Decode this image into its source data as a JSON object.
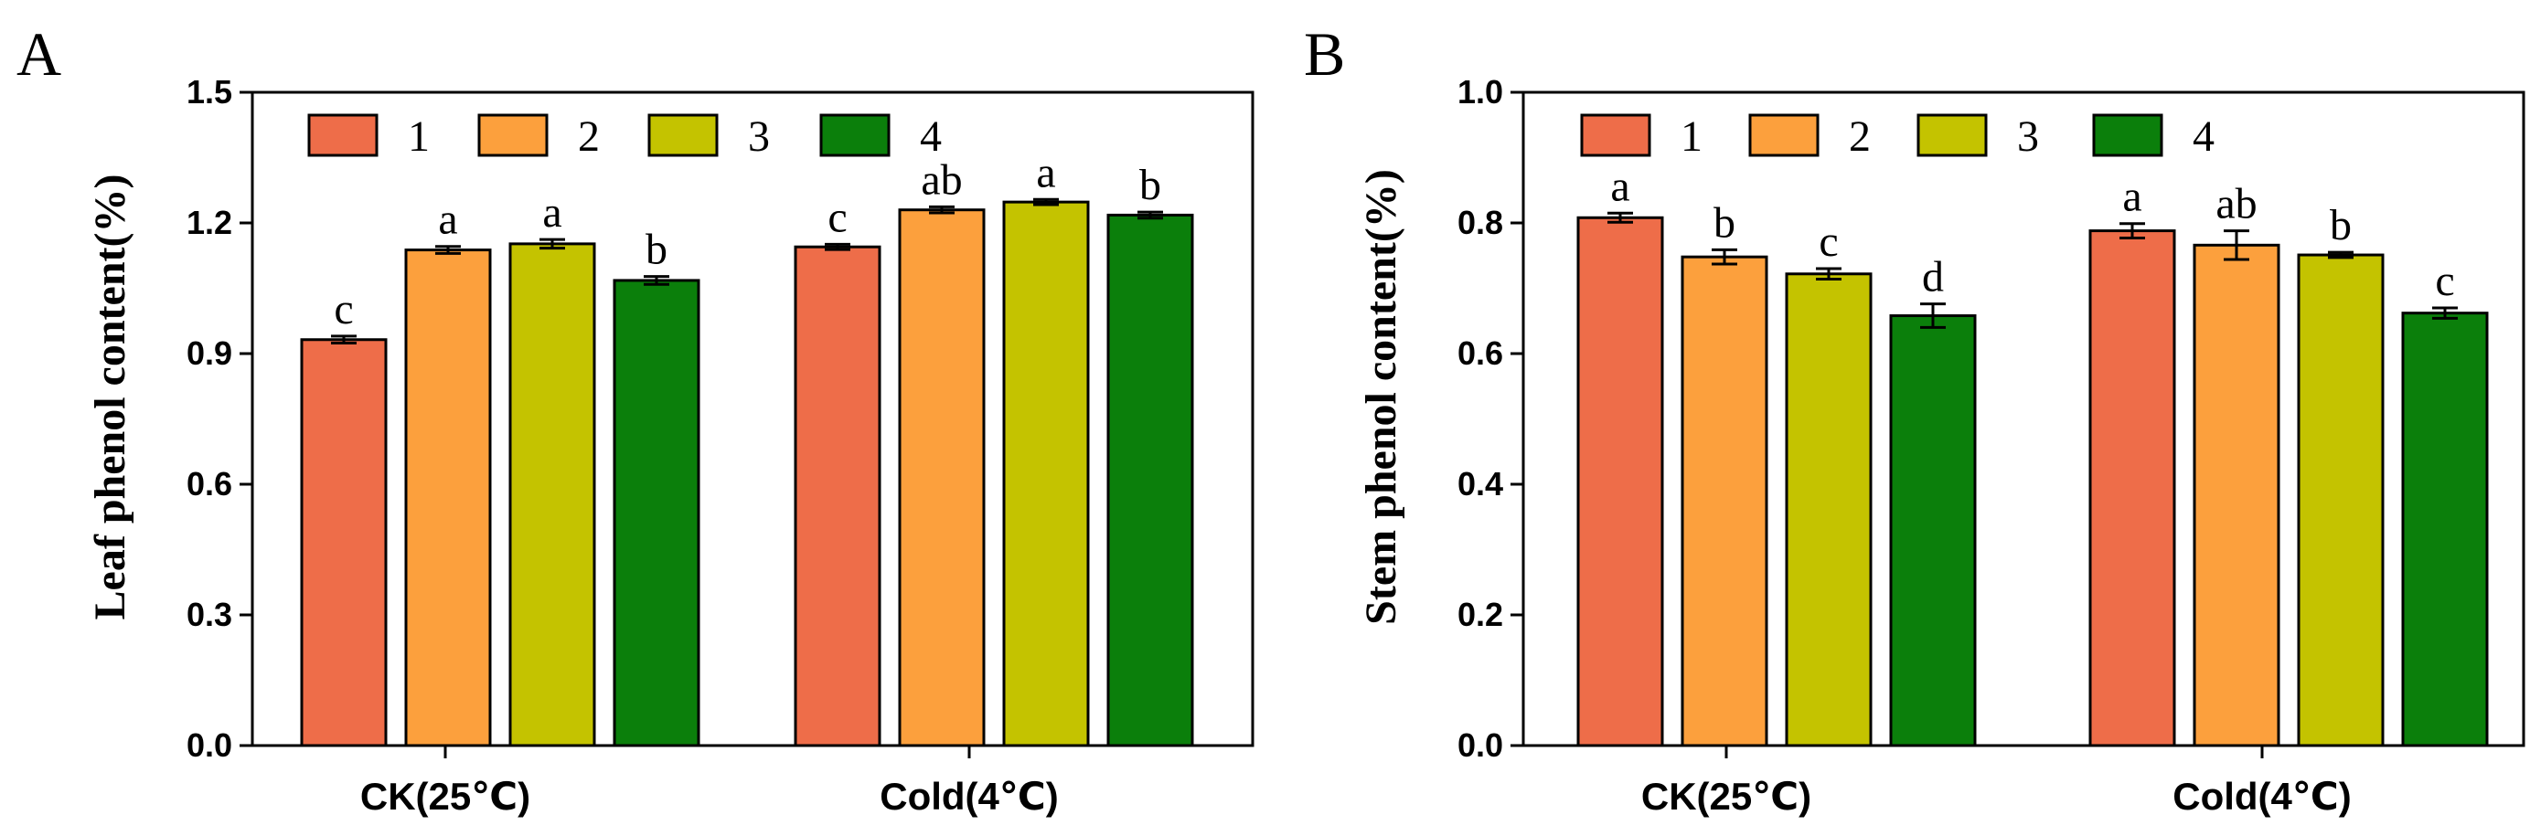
{
  "chart_data": [
    {
      "type": "bar",
      "panel": "A",
      "ylabel": "Leaf phenol content(%)",
      "xlabel": "",
      "ylim": [
        0,
        1.5
      ],
      "yticks": [
        "0.0",
        "0.3",
        "0.6",
        "0.9",
        "1.2",
        "1.5"
      ],
      "categories": [
        "CK(25℃)",
        "Cold(4℃)"
      ],
      "legend_position": "top-left",
      "series": [
        {
          "name": "1",
          "color": "#ee6d49",
          "values": [
            0.932,
            1.145
          ],
          "errors": [
            0.008,
            0.006
          ],
          "labels": [
            "c",
            "c"
          ]
        },
        {
          "name": "2",
          "color": "#fca03d",
          "values": [
            1.138,
            1.23
          ],
          "errors": [
            0.008,
            0.007
          ],
          "labels": [
            "a",
            "ab"
          ]
        },
        {
          "name": "3",
          "color": "#c4c300",
          "values": [
            1.152,
            1.248
          ],
          "errors": [
            0.01,
            0.006
          ],
          "labels": [
            "a",
            "a"
          ]
        },
        {
          "name": "4",
          "color": "#0b7f0b",
          "values": [
            1.068,
            1.218
          ],
          "errors": [
            0.009,
            0.007
          ],
          "labels": [
            "b",
            "b"
          ]
        }
      ]
    },
    {
      "type": "bar",
      "panel": "B",
      "ylabel": "Stem phenol content(%)",
      "xlabel": "",
      "ylim": [
        0,
        1.0
      ],
      "yticks": [
        "0.0",
        "0.2",
        "0.4",
        "0.6",
        "0.8",
        "1.0"
      ],
      "categories": [
        "CK(25℃)",
        "Cold(4℃)"
      ],
      "legend_position": "top-left",
      "series": [
        {
          "name": "1",
          "color": "#ee6d49",
          "values": [
            0.808,
            0.788
          ],
          "errors": [
            0.007,
            0.011
          ],
          "labels": [
            "a",
            "a"
          ]
        },
        {
          "name": "2",
          "color": "#fca03d",
          "values": [
            0.748,
            0.766
          ],
          "errors": [
            0.011,
            0.022
          ],
          "labels": [
            "b",
            "ab"
          ]
        },
        {
          "name": "3",
          "color": "#c4c300",
          "values": [
            0.722,
            0.751
          ],
          "errors": [
            0.008,
            0.004
          ],
          "labels": [
            "c",
            "b"
          ]
        },
        {
          "name": "4",
          "color": "#0b7f0b",
          "values": [
            0.658,
            0.662
          ],
          "errors": [
            0.018,
            0.008
          ],
          "labels": [
            "d",
            "c"
          ]
        }
      ]
    }
  ]
}
